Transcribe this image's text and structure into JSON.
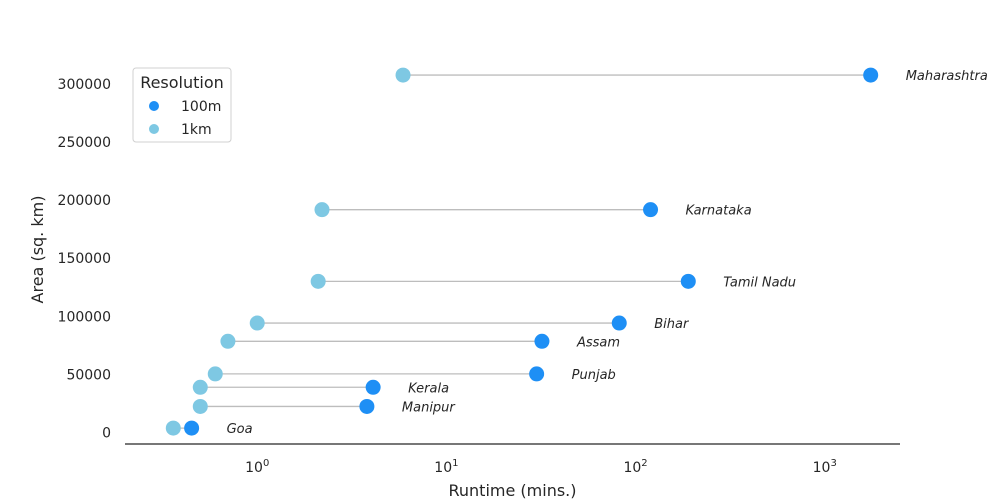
{
  "chart_data": {
    "type": "scatter",
    "title": "",
    "xlabel": "Runtime (mins.)",
    "ylabel": "Area (sq. km)",
    "x_scale": "log",
    "xlim": [
      0.2,
      2500
    ],
    "ylim": [
      -10000,
      325000
    ],
    "x_ticks": [
      {
        "value": 1,
        "base": "10",
        "exp": "0"
      },
      {
        "value": 10,
        "base": "10",
        "exp": "1"
      },
      {
        "value": 100,
        "base": "10",
        "exp": "2"
      },
      {
        "value": 1000,
        "base": "10",
        "exp": "3"
      }
    ],
    "y_ticks": [
      0,
      50000,
      100000,
      150000,
      200000,
      250000,
      300000
    ],
    "y_tick_labels": [
      "0",
      "50000",
      "100000",
      "150000",
      "200000",
      "250000",
      "300000"
    ],
    "grid": false,
    "legend": {
      "title": "Resolution",
      "placement": "top-left",
      "entries": [
        {
          "name": "100m",
          "color": "#1e8ff5"
        },
        {
          "name": "1km",
          "color": "#7ec8e3"
        }
      ]
    },
    "series": [
      {
        "name": "100m",
        "color": "#1e8ff5"
      },
      {
        "name": "1km",
        "color": "#7ec8e3"
      }
    ],
    "connector_color": "#bdbdbd",
    "points": [
      {
        "state": "Maharashtra",
        "area": 307713,
        "runtime_100m": 1750,
        "runtime_1km": 5.9
      },
      {
        "state": "Karnataka",
        "area": 191791,
        "runtime_100m": 120,
        "runtime_1km": 2.2
      },
      {
        "state": "Tamil Nadu",
        "area": 130058,
        "runtime_100m": 190,
        "runtime_1km": 2.1
      },
      {
        "state": "Bihar",
        "area": 94163,
        "runtime_100m": 82,
        "runtime_1km": 1.0
      },
      {
        "state": "Assam",
        "area": 78438,
        "runtime_100m": 32,
        "runtime_1km": 0.7
      },
      {
        "state": "Punjab",
        "area": 50362,
        "runtime_100m": 30,
        "runtime_1km": 0.6
      },
      {
        "state": "Kerala",
        "area": 38863,
        "runtime_100m": 4.1,
        "runtime_1km": 0.5
      },
      {
        "state": "Manipur",
        "area": 22327,
        "runtime_100m": 3.8,
        "runtime_1km": 0.5
      },
      {
        "state": "Goa",
        "area": 3702,
        "runtime_100m": 0.45,
        "runtime_1km": 0.36
      }
    ]
  }
}
